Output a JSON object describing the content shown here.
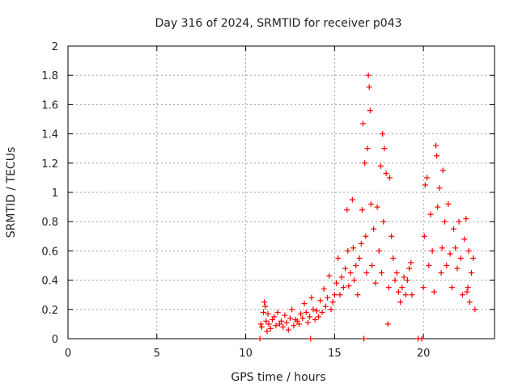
{
  "chart_data": {
    "type": "scatter",
    "title": "Day 316 of 2024, SRMTID for receiver p043",
    "xlabel": "GPS time / hours",
    "ylabel": "SRMTID / TECUs",
    "xlim": [
      0,
      24
    ],
    "ylim": [
      0,
      2
    ],
    "xticks": [
      0,
      5,
      10,
      15,
      20
    ],
    "yticks": [
      0,
      0.2,
      0.4,
      0.6,
      0.8,
      1,
      1.2,
      1.4,
      1.6,
      1.8,
      2
    ],
    "grid": true,
    "marker": "+",
    "series": [
      {
        "name": "SRMTID",
        "color": "#ff0000",
        "points": [
          [
            10.8,
            0.0
          ],
          [
            10.85,
            0.1
          ],
          [
            10.9,
            0.08
          ],
          [
            11.0,
            0.18
          ],
          [
            11.05,
            0.25
          ],
          [
            11.1,
            0.22
          ],
          [
            11.15,
            0.12
          ],
          [
            11.2,
            0.05
          ],
          [
            11.25,
            0.17
          ],
          [
            11.3,
            0.1
          ],
          [
            11.4,
            0.07
          ],
          [
            11.5,
            0.13
          ],
          [
            11.6,
            0.15
          ],
          [
            11.7,
            0.09
          ],
          [
            11.8,
            0.18
          ],
          [
            11.9,
            0.1
          ],
          [
            12.0,
            0.12
          ],
          [
            12.1,
            0.08
          ],
          [
            12.2,
            0.16
          ],
          [
            12.3,
            0.11
          ],
          [
            12.4,
            0.06
          ],
          [
            12.5,
            0.14
          ],
          [
            12.6,
            0.2
          ],
          [
            12.7,
            0.09
          ],
          [
            12.8,
            0.13
          ],
          [
            12.9,
            0.12
          ],
          [
            13.0,
            0.1
          ],
          [
            13.1,
            0.17
          ],
          [
            13.2,
            0.14
          ],
          [
            13.3,
            0.24
          ],
          [
            13.4,
            0.18
          ],
          [
            13.5,
            0.11
          ],
          [
            13.6,
            0.15
          ],
          [
            13.65,
            0.0
          ],
          [
            13.7,
            0.28
          ],
          [
            13.8,
            0.2
          ],
          [
            13.9,
            0.13
          ],
          [
            14.0,
            0.19
          ],
          [
            14.1,
            0.15
          ],
          [
            14.2,
            0.26
          ],
          [
            14.3,
            0.18
          ],
          [
            14.4,
            0.34
          ],
          [
            14.5,
            0.22
          ],
          [
            14.6,
            0.28
          ],
          [
            14.7,
            0.43
          ],
          [
            14.8,
            0.2
          ],
          [
            14.9,
            0.25
          ],
          [
            15.0,
            0.3
          ],
          [
            15.1,
            0.38
          ],
          [
            15.2,
            0.55
          ],
          [
            15.3,
            0.3
          ],
          [
            15.4,
            0.42
          ],
          [
            15.5,
            0.35
          ],
          [
            15.6,
            0.48
          ],
          [
            15.7,
            0.88
          ],
          [
            15.75,
            0.6
          ],
          [
            15.8,
            0.36
          ],
          [
            15.9,
            0.45
          ],
          [
            16.0,
            0.95
          ],
          [
            16.05,
            0.62
          ],
          [
            16.1,
            0.4
          ],
          [
            16.2,
            0.5
          ],
          [
            16.3,
            0.3
          ],
          [
            16.4,
            0.55
          ],
          [
            16.5,
            0.65
          ],
          [
            16.55,
            0.88
          ],
          [
            16.6,
            1.47
          ],
          [
            16.65,
            0.0
          ],
          [
            16.7,
            1.2
          ],
          [
            16.75,
            0.7
          ],
          [
            16.8,
            0.45
          ],
          [
            16.85,
            1.3
          ],
          [
            16.9,
            1.8
          ],
          [
            16.95,
            1.72
          ],
          [
            17.0,
            1.56
          ],
          [
            17.05,
            0.92
          ],
          [
            17.1,
            0.5
          ],
          [
            17.2,
            0.75
          ],
          [
            17.3,
            0.38
          ],
          [
            17.4,
            0.9
          ],
          [
            17.5,
            0.6
          ],
          [
            17.6,
            1.18
          ],
          [
            17.65,
            0.45
          ],
          [
            17.7,
            1.4
          ],
          [
            17.75,
            0.8
          ],
          [
            17.8,
            1.3
          ],
          [
            17.9,
            1.13
          ],
          [
            18.0,
            0.1
          ],
          [
            18.05,
            0.35
          ],
          [
            18.1,
            1.1
          ],
          [
            18.2,
            0.7
          ],
          [
            18.3,
            0.55
          ],
          [
            18.4,
            0.4
          ],
          [
            18.5,
            0.45
          ],
          [
            18.6,
            0.32
          ],
          [
            18.7,
            0.25
          ],
          [
            18.8,
            0.35
          ],
          [
            18.9,
            0.42
          ],
          [
            19.0,
            0.3
          ],
          [
            19.1,
            0.4
          ],
          [
            19.2,
            0.48
          ],
          [
            19.3,
            0.52
          ],
          [
            19.35,
            0.3
          ],
          [
            19.7,
            0.0
          ],
          [
            19.9,
            0.0
          ],
          [
            20.0,
            0.35
          ],
          [
            20.05,
            0.7
          ],
          [
            20.1,
            1.05
          ],
          [
            20.2,
            1.1
          ],
          [
            20.3,
            0.5
          ],
          [
            20.4,
            0.85
          ],
          [
            20.5,
            0.6
          ],
          [
            20.6,
            0.32
          ],
          [
            20.7,
            1.32
          ],
          [
            20.75,
            1.25
          ],
          [
            20.8,
            0.9
          ],
          [
            20.9,
            1.03
          ],
          [
            21.0,
            0.45
          ],
          [
            21.05,
            0.62
          ],
          [
            21.1,
            1.15
          ],
          [
            21.2,
            0.8
          ],
          [
            21.3,
            0.5
          ],
          [
            21.4,
            0.92
          ],
          [
            21.5,
            0.58
          ],
          [
            21.6,
            0.35
          ],
          [
            21.7,
            0.75
          ],
          [
            21.8,
            0.62
          ],
          [
            21.9,
            0.48
          ],
          [
            22.0,
            0.8
          ],
          [
            22.1,
            0.55
          ],
          [
            22.2,
            0.3
          ],
          [
            22.3,
            0.68
          ],
          [
            22.4,
            0.82
          ],
          [
            22.45,
            0.32
          ],
          [
            22.5,
            0.35
          ],
          [
            22.55,
            0.6
          ],
          [
            22.6,
            0.25
          ],
          [
            22.7,
            0.45
          ],
          [
            22.8,
            0.55
          ],
          [
            22.9,
            0.2
          ]
        ]
      }
    ]
  }
}
